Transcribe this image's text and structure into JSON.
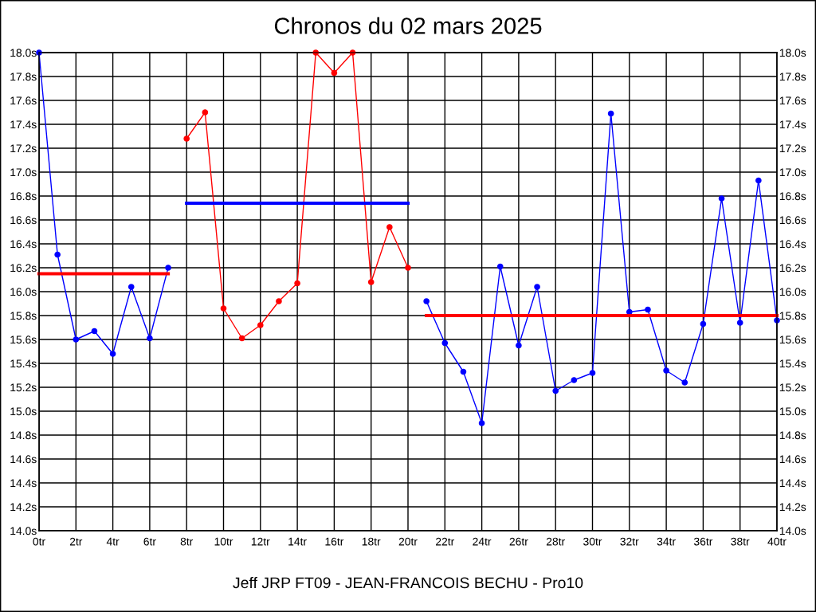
{
  "chart_data": {
    "type": "line",
    "title": "Chronos du 02 mars 2025",
    "annotations": [
      "Jeff JRP FT09 - JEAN-FRANCOIS BECHU - Pro10"
    ],
    "series": [
      {
        "color": "#0000ff",
        "x": [
          0,
          1,
          2,
          3,
          4,
          5,
          6,
          7
        ],
        "values": [
          18.0,
          16.31,
          15.6,
          15.67,
          15.48,
          16.04,
          15.61,
          16.2
        ]
      },
      {
        "color": "#ff0000",
        "x": [
          8,
          9,
          10,
          11,
          12,
          13,
          14,
          15,
          16,
          17,
          18,
          19,
          20
        ],
        "values": [
          17.28,
          17.5,
          15.86,
          15.61,
          15.72,
          15.92,
          16.07,
          18.0,
          17.83,
          18.0,
          16.08,
          16.54,
          16.2
        ]
      },
      {
        "color": "#0000ff",
        "x": [
          21,
          22,
          23,
          24,
          25,
          26,
          27,
          28,
          29,
          30,
          31,
          32,
          33,
          34,
          35,
          36,
          37,
          38,
          39,
          40
        ],
        "values": [
          15.92,
          15.57,
          15.33,
          14.9,
          16.21,
          15.55,
          16.04,
          15.17,
          15.26,
          15.32,
          17.49,
          15.83,
          15.85,
          15.34,
          15.24,
          15.73,
          16.78,
          15.74,
          16.93,
          15.76
        ]
      },
      {
        "color": "#ff0000",
        "marker": "none",
        "x": [
          0,
          7
        ],
        "values": [
          16.15,
          16.15
        ]
      },
      {
        "color": "#0000ff",
        "marker": "none",
        "x": [
          8,
          20
        ],
        "values": [
          16.74,
          16.74
        ]
      },
      {
        "color": "#ff0000",
        "marker": "none",
        "x": [
          21,
          40
        ],
        "values": [
          15.8,
          15.8
        ]
      }
    ],
    "marker": "circle",
    "line_style": "solid",
    "grid": true,
    "xlim": [
      0,
      40
    ],
    "xticks": [
      {
        "value": 0,
        "label": "0tr"
      },
      {
        "value": 2,
        "label": "2tr"
      },
      {
        "value": 4,
        "label": "4tr"
      },
      {
        "value": 6,
        "label": "6tr"
      },
      {
        "value": 8,
        "label": "8tr"
      },
      {
        "value": 10,
        "label": "10tr"
      },
      {
        "value": 12,
        "label": "12tr"
      },
      {
        "value": 14,
        "label": "14tr"
      },
      {
        "value": 16,
        "label": "16tr"
      },
      {
        "value": 18,
        "label": "18tr"
      },
      {
        "value": 20,
        "label": "20tr"
      },
      {
        "value": 22,
        "label": "22tr"
      },
      {
        "value": 24,
        "label": "24tr"
      },
      {
        "value": 26,
        "label": "26tr"
      },
      {
        "value": 28,
        "label": "28tr"
      },
      {
        "value": 30,
        "label": "30tr"
      },
      {
        "value": 32,
        "label": "32tr"
      },
      {
        "value": 34,
        "label": "34tr"
      },
      {
        "value": 36,
        "label": "36tr"
      },
      {
        "value": 38,
        "label": "38tr"
      },
      {
        "value": 40,
        "label": "40tr"
      }
    ],
    "ylim": [
      14.0,
      18.0
    ],
    "yticks": [
      {
        "value": 14.0,
        "label": "14.0s"
      },
      {
        "value": 14.2,
        "label": "14.2s"
      },
      {
        "value": 14.4,
        "label": "14.4s"
      },
      {
        "value": 14.6,
        "label": "14.6s"
      },
      {
        "value": 14.8,
        "label": "14.8s"
      },
      {
        "value": 15.0,
        "label": "15.0s"
      },
      {
        "value": 15.2,
        "label": "15.2s"
      },
      {
        "value": 15.4,
        "label": "15.4s"
      },
      {
        "value": 15.6,
        "label": "15.6s"
      },
      {
        "value": 15.8,
        "label": "15.8s"
      },
      {
        "value": 16.0,
        "label": "16.0s"
      },
      {
        "value": 16.2,
        "label": "16.2s"
      },
      {
        "value": 16.4,
        "label": "16.4s"
      },
      {
        "value": 16.6,
        "label": "16.6s"
      },
      {
        "value": 16.8,
        "label": "16.8s"
      },
      {
        "value": 17.0,
        "label": "17.0s"
      },
      {
        "value": 17.2,
        "label": "17.2s"
      },
      {
        "value": 17.4,
        "label": "17.4s"
      },
      {
        "value": 17.6,
        "label": "17.6s"
      },
      {
        "value": 17.8,
        "label": "17.8s"
      },
      {
        "value": 18.0,
        "label": "18.0s"
      }
    ],
    "y2lim": [
      14.0,
      18.0
    ],
    "y2ticks": [
      {
        "value": 14.0,
        "label": "14.0s"
      },
      {
        "value": 14.2,
        "label": "14.2s"
      },
      {
        "value": 14.4,
        "label": "14.4s"
      },
      {
        "value": 14.6,
        "label": "14.6s"
      },
      {
        "value": 14.8,
        "label": "14.8s"
      },
      {
        "value": 15.0,
        "label": "15.0s"
      },
      {
        "value": 15.2,
        "label": "15.2s"
      },
      {
        "value": 15.4,
        "label": "15.4s"
      },
      {
        "value": 15.6,
        "label": "15.6s"
      },
      {
        "value": 15.8,
        "label": "15.8s"
      },
      {
        "value": 16.0,
        "label": "16.0s"
      },
      {
        "value": 16.2,
        "label": "16.2s"
      },
      {
        "value": 16.4,
        "label": "16.4s"
      },
      {
        "value": 16.6,
        "label": "16.6s"
      },
      {
        "value": 16.8,
        "label": "16.8s"
      },
      {
        "value": 17.0,
        "label": "17.0s"
      },
      {
        "value": 17.2,
        "label": "17.2s"
      },
      {
        "value": 17.4,
        "label": "17.4s"
      },
      {
        "value": 17.6,
        "label": "17.6s"
      },
      {
        "value": 17.8,
        "label": "17.8s"
      },
      {
        "value": 18.0,
        "label": "18.0s"
      }
    ]
  }
}
